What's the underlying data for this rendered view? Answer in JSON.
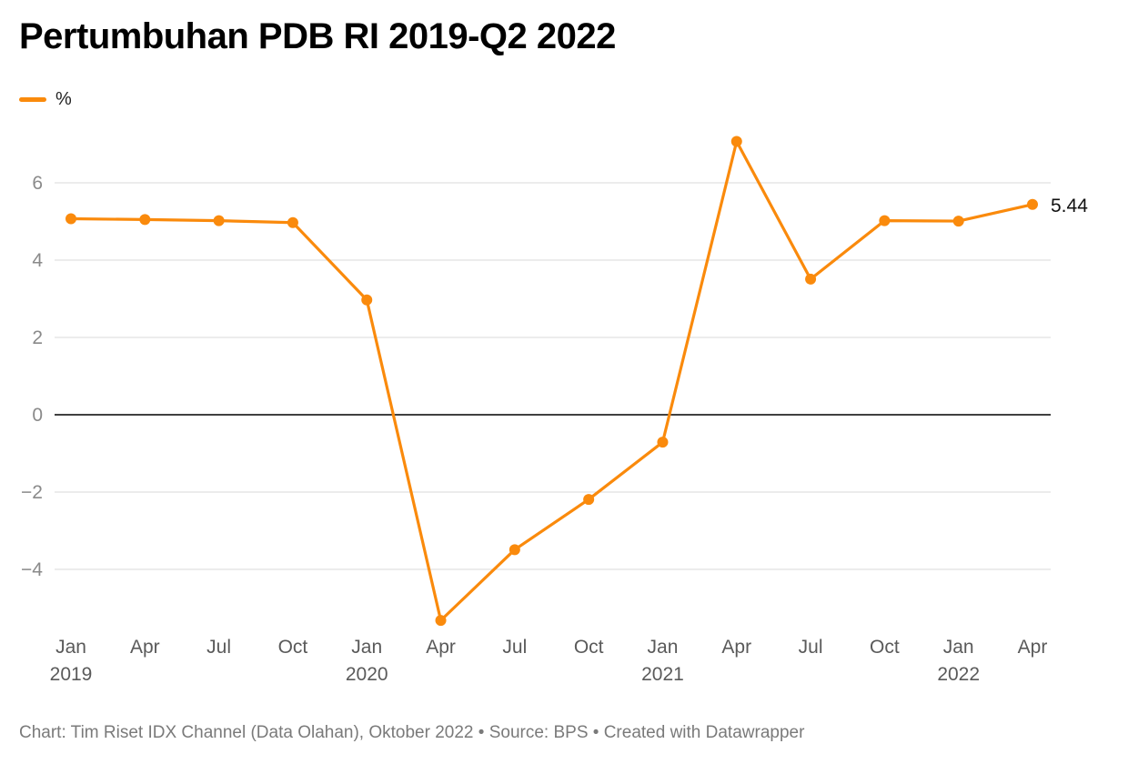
{
  "title": "Pertumbuhan PDB RI 2019-Q2 2022",
  "legend": {
    "label": "%"
  },
  "footer": "Chart: Tim Riset IDX Channel (Data Olahan), Oktober 2022 • Source: BPS • Created with Datawrapper",
  "colors": {
    "series": "#fa8a0c",
    "grid": "#d9d9d9",
    "zero_line": "#000000",
    "tick_label": "#8a8a8a",
    "x_label": "#5a5a5a"
  },
  "chart_data": {
    "type": "line",
    "x": [
      "2019-01",
      "2019-04",
      "2019-07",
      "2019-10",
      "2020-01",
      "2020-04",
      "2020-07",
      "2020-10",
      "2021-01",
      "2021-04",
      "2021-07",
      "2021-10",
      "2022-01",
      "2022-04"
    ],
    "x_tick_labels": [
      {
        "month": "Jan",
        "year": "2019"
      },
      {
        "month": "Apr",
        "year": ""
      },
      {
        "month": "Jul",
        "year": ""
      },
      {
        "month": "Oct",
        "year": ""
      },
      {
        "month": "Jan",
        "year": "2020"
      },
      {
        "month": "Apr",
        "year": ""
      },
      {
        "month": "Jul",
        "year": ""
      },
      {
        "month": "Oct",
        "year": ""
      },
      {
        "month": "Jan",
        "year": "2021"
      },
      {
        "month": "Apr",
        "year": ""
      },
      {
        "month": "Jul",
        "year": ""
      },
      {
        "month": "Oct",
        "year": ""
      },
      {
        "month": "Jan",
        "year": "2022"
      },
      {
        "month": "Apr",
        "year": ""
      }
    ],
    "series": [
      {
        "name": "%",
        "values": [
          5.07,
          5.05,
          5.02,
          4.97,
          2.97,
          -5.32,
          -3.49,
          -2.19,
          -0.71,
          7.07,
          3.51,
          5.02,
          5.01,
          5.44
        ]
      }
    ],
    "y_ticks": [
      6,
      4,
      2,
      0,
      -2,
      -4
    ],
    "y_tick_labels": [
      "6",
      "4",
      "2",
      "0",
      "−2",
      "−4"
    ],
    "ylim": [
      -5.85,
      7.6
    ],
    "grid": true,
    "legend_position": "top-left",
    "last_value_label": "5.44"
  }
}
